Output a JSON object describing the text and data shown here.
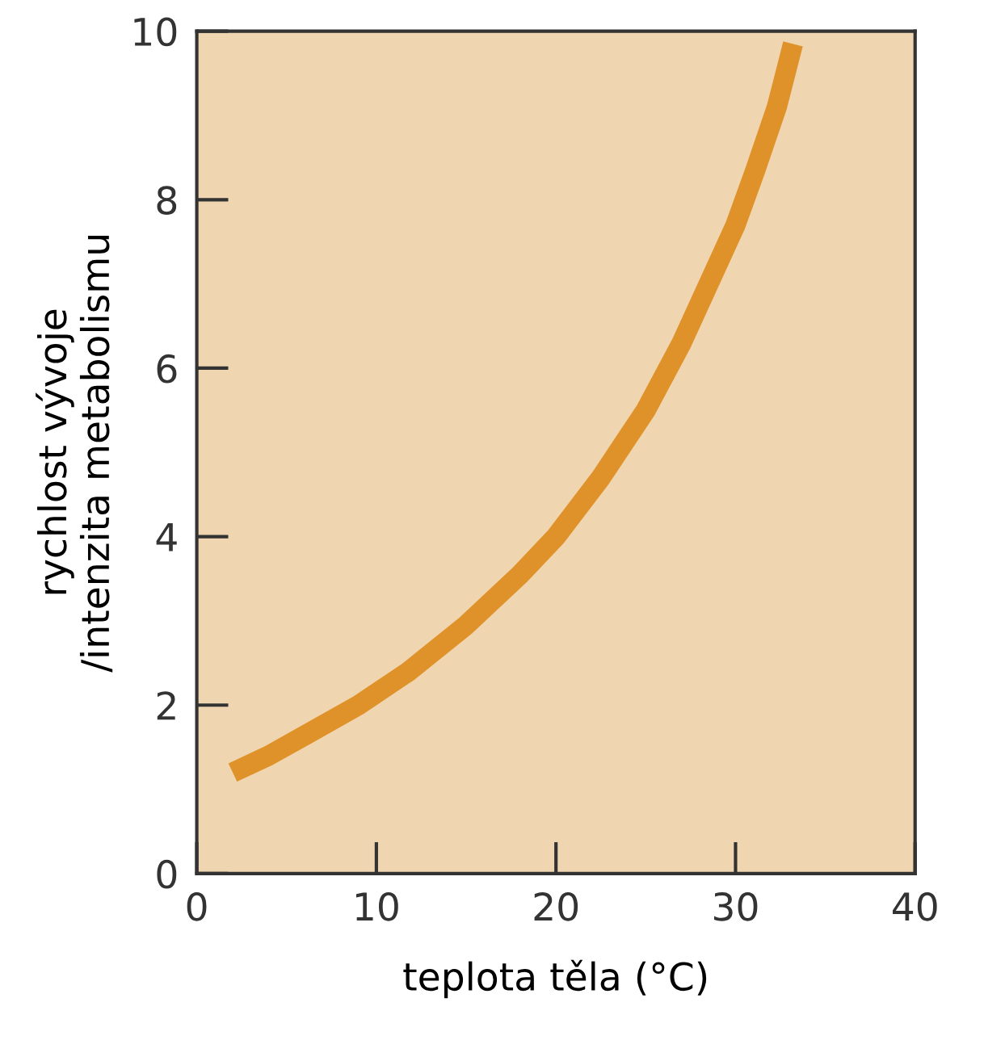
{
  "chart_data": {
    "type": "line",
    "xlabel": "teplota těla (°C)",
    "ylabel": "rychlost vývoje\n/intenzita metabolismu",
    "x": [
      2,
      4,
      6.1,
      9,
      11.8,
      15,
      18,
      20,
      22.5,
      25,
      27,
      28.5,
      30,
      31.1,
      32.3,
      33.2
    ],
    "series": [
      {
        "color": "#e0922a",
        "values": [
          1.2,
          1.4,
          1.65,
          2.0,
          2.4,
          2.95,
          3.55,
          4.0,
          4.7,
          5.5,
          6.3,
          7.0,
          7.7,
          8.35,
          9.1,
          9.85
        ]
      }
    ],
    "xlim": [
      0,
      40
    ],
    "ylim": [
      0,
      10
    ],
    "xticks": [
      0,
      10,
      20,
      30,
      40
    ],
    "yticks": [
      0,
      2,
      4,
      6,
      8,
      10
    ],
    "grid": false,
    "marker": "none",
    "line_style": "solid",
    "legend": false
  }
}
